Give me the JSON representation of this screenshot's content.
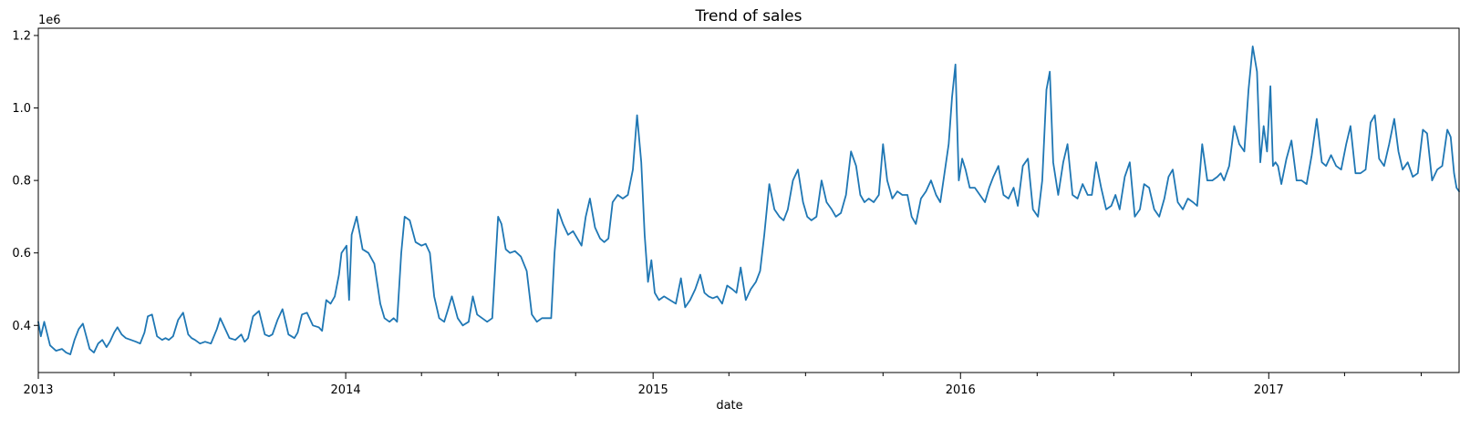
{
  "chart_data": {
    "type": "line",
    "title": "Trend of sales",
    "xlabel": "date",
    "ylabel": "",
    "y_offset_label": "1e6",
    "xlim": [
      "2013-01-01",
      "2017-08-15"
    ],
    "ylim": [
      270000,
      1220000
    ],
    "grid": false,
    "legend": "none",
    "line_color": "#1f77b4",
    "x_tick_labels": [
      "2013",
      "2014",
      "2015",
      "2016",
      "2017"
    ],
    "y_tick_labels": [
      "0.4",
      "0.6",
      "0.8",
      "1.0",
      "1.2"
    ],
    "series": [
      {
        "x": [
          "2013-01-01",
          "2013-01-04",
          "2013-01-08",
          "2013-01-15",
          "2013-01-22",
          "2013-01-29",
          "2013-02-03",
          "2013-02-08",
          "2013-02-13",
          "2013-02-18",
          "2013-02-23",
          "2013-02-27",
          "2013-03-03",
          "2013-03-08",
          "2013-03-13",
          "2013-03-18",
          "2013-03-23",
          "2013-03-27",
          "2013-04-01",
          "2013-04-05",
          "2013-04-10",
          "2013-04-15",
          "2013-04-21",
          "2013-04-27",
          "2013-05-02",
          "2013-05-07",
          "2013-05-11",
          "2013-05-16",
          "2013-05-22",
          "2013-05-28",
          "2013-06-01",
          "2013-06-05",
          "2013-06-10",
          "2013-06-16",
          "2013-06-22",
          "2013-06-28",
          "2013-07-02",
          "2013-07-06",
          "2013-07-12",
          "2013-07-18",
          "2013-07-25",
          "2013-08-01",
          "2013-08-05",
          "2013-08-10",
          "2013-08-16",
          "2013-08-23",
          "2013-08-30",
          "2013-09-03",
          "2013-09-07",
          "2013-09-13",
          "2013-09-20",
          "2013-09-27",
          "2013-10-02",
          "2013-10-06",
          "2013-10-12",
          "2013-10-18",
          "2013-10-25",
          "2013-11-01",
          "2013-11-05",
          "2013-11-10",
          "2013-11-16",
          "2013-11-23",
          "2013-11-30",
          "2013-12-04",
          "2013-12-09",
          "2013-12-14",
          "2013-12-19",
          "2013-12-24",
          "2013-12-27",
          "2014-01-02",
          "2014-01-05",
          "2014-01-08",
          "2014-01-14",
          "2014-01-21",
          "2014-01-28",
          "2014-02-04",
          "2014-02-11",
          "2014-02-16",
          "2014-02-22",
          "2014-02-27",
          "2014-03-03",
          "2014-03-08",
          "2014-03-12",
          "2014-03-18",
          "2014-03-25",
          "2014-04-01",
          "2014-04-06",
          "2014-04-11",
          "2014-04-16",
          "2014-04-22",
          "2014-04-28",
          "2014-05-02",
          "2014-05-07",
          "2014-05-14",
          "2014-05-20",
          "2014-05-27",
          "2014-06-01",
          "2014-06-06",
          "2014-06-12",
          "2014-06-18",
          "2014-06-24",
          "2014-07-01",
          "2014-07-05",
          "2014-07-10",
          "2014-07-15",
          "2014-07-21",
          "2014-07-28",
          "2014-08-04",
          "2014-08-10",
          "2014-08-16",
          "2014-08-22",
          "2014-08-28",
          "2014-09-02",
          "2014-09-06",
          "2014-09-10",
          "2014-09-16",
          "2014-09-22",
          "2014-09-28",
          "2014-10-03",
          "2014-10-08",
          "2014-10-13",
          "2014-10-18",
          "2014-10-24",
          "2014-10-30",
          "2014-11-04",
          "2014-11-09",
          "2014-11-14",
          "2014-11-20",
          "2014-11-26",
          "2014-12-02",
          "2014-12-08",
          "2014-12-13",
          "2014-12-18",
          "2014-12-22",
          "2014-12-26",
          "2014-12-30",
          "2015-01-03",
          "2015-01-08",
          "2015-01-14",
          "2015-01-21",
          "2015-01-28",
          "2015-02-03",
          "2015-02-08",
          "2015-02-14",
          "2015-02-20",
          "2015-02-26",
          "2015-03-03",
          "2015-03-08",
          "2015-03-13",
          "2015-03-18",
          "2015-03-24",
          "2015-03-30",
          "2015-04-05",
          "2015-04-10",
          "2015-04-15",
          "2015-04-21",
          "2015-04-27",
          "2015-05-03",
          "2015-05-08",
          "2015-05-13",
          "2015-05-19",
          "2015-05-25",
          "2015-05-31",
          "2015-06-05",
          "2015-06-10",
          "2015-06-16",
          "2015-06-22",
          "2015-06-28",
          "2015-07-03",
          "2015-07-08",
          "2015-07-14",
          "2015-07-20",
          "2015-07-26",
          "2015-08-01",
          "2015-08-06",
          "2015-08-12",
          "2015-08-18",
          "2015-08-24",
          "2015-08-30",
          "2015-09-04",
          "2015-09-09",
          "2015-09-14",
          "2015-09-20",
          "2015-09-26",
          "2015-10-01",
          "2015-10-06",
          "2015-10-12",
          "2015-10-18",
          "2015-10-24",
          "2015-10-30",
          "2015-11-04",
          "2015-11-09",
          "2015-11-15",
          "2015-11-21",
          "2015-11-27",
          "2015-12-03",
          "2015-12-08",
          "2015-12-13",
          "2015-12-18",
          "2015-12-22",
          "2015-12-26",
          "2015-12-30",
          "2016-01-03",
          "2016-01-07",
          "2016-01-12",
          "2016-01-18",
          "2016-01-24",
          "2016-01-30",
          "2016-02-04",
          "2016-02-09",
          "2016-02-15",
          "2016-02-21",
          "2016-02-27",
          "2016-03-04",
          "2016-03-09",
          "2016-03-15",
          "2016-03-21",
          "2016-03-27",
          "2016-04-02",
          "2016-04-07",
          "2016-04-12",
          "2016-04-16",
          "2016-04-20",
          "2016-04-26",
          "2016-05-02",
          "2016-05-07",
          "2016-05-13",
          "2016-05-19",
          "2016-05-25",
          "2016-05-31",
          "2016-06-05",
          "2016-06-10",
          "2016-06-16",
          "2016-06-22",
          "2016-06-28",
          "2016-07-03",
          "2016-07-08",
          "2016-07-14",
          "2016-07-20",
          "2016-07-26",
          "2016-08-01",
          "2016-08-06",
          "2016-08-12",
          "2016-08-18",
          "2016-08-24",
          "2016-08-30",
          "2016-09-04",
          "2016-09-09",
          "2016-09-15",
          "2016-09-21",
          "2016-09-27",
          "2016-10-03",
          "2016-10-08",
          "2016-10-14",
          "2016-10-20",
          "2016-10-26",
          "2016-11-01",
          "2016-11-05",
          "2016-11-09",
          "2016-11-15",
          "2016-11-21",
          "2016-11-27",
          "2016-12-03",
          "2016-12-08",
          "2016-12-13",
          "2016-12-18",
          "2016-12-22",
          "2016-12-26",
          "2016-12-30",
          "2017-01-03",
          "2017-01-06",
          "2017-01-09",
          "2017-01-12",
          "2017-01-16",
          "2017-01-22",
          "2017-01-28",
          "2017-02-03",
          "2017-02-09",
          "2017-02-15",
          "2017-02-21",
          "2017-02-27",
          "2017-03-05",
          "2017-03-10",
          "2017-03-16",
          "2017-03-22",
          "2017-03-28",
          "2017-04-03",
          "2017-04-08",
          "2017-04-14",
          "2017-04-20",
          "2017-04-26",
          "2017-05-02",
          "2017-05-07",
          "2017-05-12",
          "2017-05-18",
          "2017-05-24",
          "2017-05-30",
          "2017-06-04",
          "2017-06-09",
          "2017-06-15",
          "2017-06-21",
          "2017-06-27",
          "2017-07-03",
          "2017-07-08",
          "2017-07-14",
          "2017-07-20",
          "2017-07-26",
          "2017-08-01",
          "2017-08-05",
          "2017-08-09",
          "2017-08-12",
          "2017-08-15"
        ],
        "y": [
          410000,
          370000,
          410000,
          345000,
          330000,
          335000,
          325000,
          320000,
          360000,
          390000,
          405000,
          370000,
          335000,
          325000,
          350000,
          360000,
          340000,
          355000,
          380000,
          395000,
          375000,
          365000,
          360000,
          355000,
          350000,
          380000,
          425000,
          430000,
          370000,
          360000,
          365000,
          360000,
          370000,
          415000,
          435000,
          375000,
          365000,
          360000,
          350000,
          355000,
          350000,
          390000,
          420000,
          395000,
          365000,
          360000,
          375000,
          355000,
          365000,
          425000,
          440000,
          375000,
          370000,
          375000,
          415000,
          445000,
          375000,
          365000,
          380000,
          430000,
          435000,
          400000,
          395000,
          385000,
          470000,
          460000,
          480000,
          540000,
          600000,
          620000,
          470000,
          650000,
          700000,
          610000,
          600000,
          570000,
          460000,
          420000,
          410000,
          420000,
          410000,
          600000,
          700000,
          690000,
          630000,
          620000,
          625000,
          600000,
          480000,
          420000,
          410000,
          440000,
          480000,
          420000,
          400000,
          410000,
          480000,
          430000,
          420000,
          410000,
          420000,
          700000,
          680000,
          610000,
          600000,
          605000,
          590000,
          550000,
          430000,
          410000,
          420000,
          420000,
          420000,
          600000,
          720000,
          680000,
          650000,
          660000,
          640000,
          620000,
          700000,
          750000,
          670000,
          640000,
          630000,
          640000,
          740000,
          760000,
          750000,
          760000,
          830000,
          980000,
          850000,
          650000,
          520000,
          580000,
          490000,
          470000,
          480000,
          470000,
          460000,
          530000,
          450000,
          470000,
          500000,
          540000,
          490000,
          480000,
          475000,
          480000,
          460000,
          510000,
          500000,
          490000,
          560000,
          470000,
          500000,
          520000,
          550000,
          650000,
          790000,
          720000,
          700000,
          690000,
          720000,
          800000,
          830000,
          740000,
          700000,
          690000,
          700000,
          800000,
          740000,
          720000,
          700000,
          710000,
          760000,
          880000,
          840000,
          760000,
          740000,
          750000,
          740000,
          760000,
          900000,
          800000,
          750000,
          770000,
          760000,
          760000,
          700000,
          680000,
          750000,
          770000,
          800000,
          760000,
          740000,
          820000,
          900000,
          1030000,
          1120000,
          800000,
          860000,
          830000,
          780000,
          780000,
          760000,
          740000,
          780000,
          810000,
          840000,
          760000,
          750000,
          780000,
          730000,
          840000,
          860000,
          720000,
          700000,
          800000,
          1050000,
          1100000,
          850000,
          760000,
          850000,
          900000,
          760000,
          750000,
          790000,
          760000,
          760000,
          850000,
          780000,
          720000,
          730000,
          760000,
          720000,
          810000,
          850000,
          700000,
          720000,
          790000,
          780000,
          720000,
          700000,
          750000,
          810000,
          830000,
          740000,
          720000,
          750000,
          740000,
          730000,
          900000,
          800000,
          800000,
          810000,
          820000,
          800000,
          840000,
          950000,
          900000,
          880000,
          1050000,
          1170000,
          1100000,
          850000,
          950000,
          880000,
          1060000,
          840000,
          850000,
          840000,
          790000,
          860000,
          910000,
          800000,
          800000,
          790000,
          870000,
          970000,
          850000,
          840000,
          870000,
          840000,
          830000,
          900000,
          950000,
          820000,
          820000,
          830000,
          960000,
          980000,
          860000,
          840000,
          900000,
          970000,
          880000,
          830000,
          850000,
          810000,
          820000,
          940000,
          930000,
          800000,
          830000,
          840000,
          940000,
          920000,
          820000,
          780000,
          770000
        ]
      }
    ]
  }
}
